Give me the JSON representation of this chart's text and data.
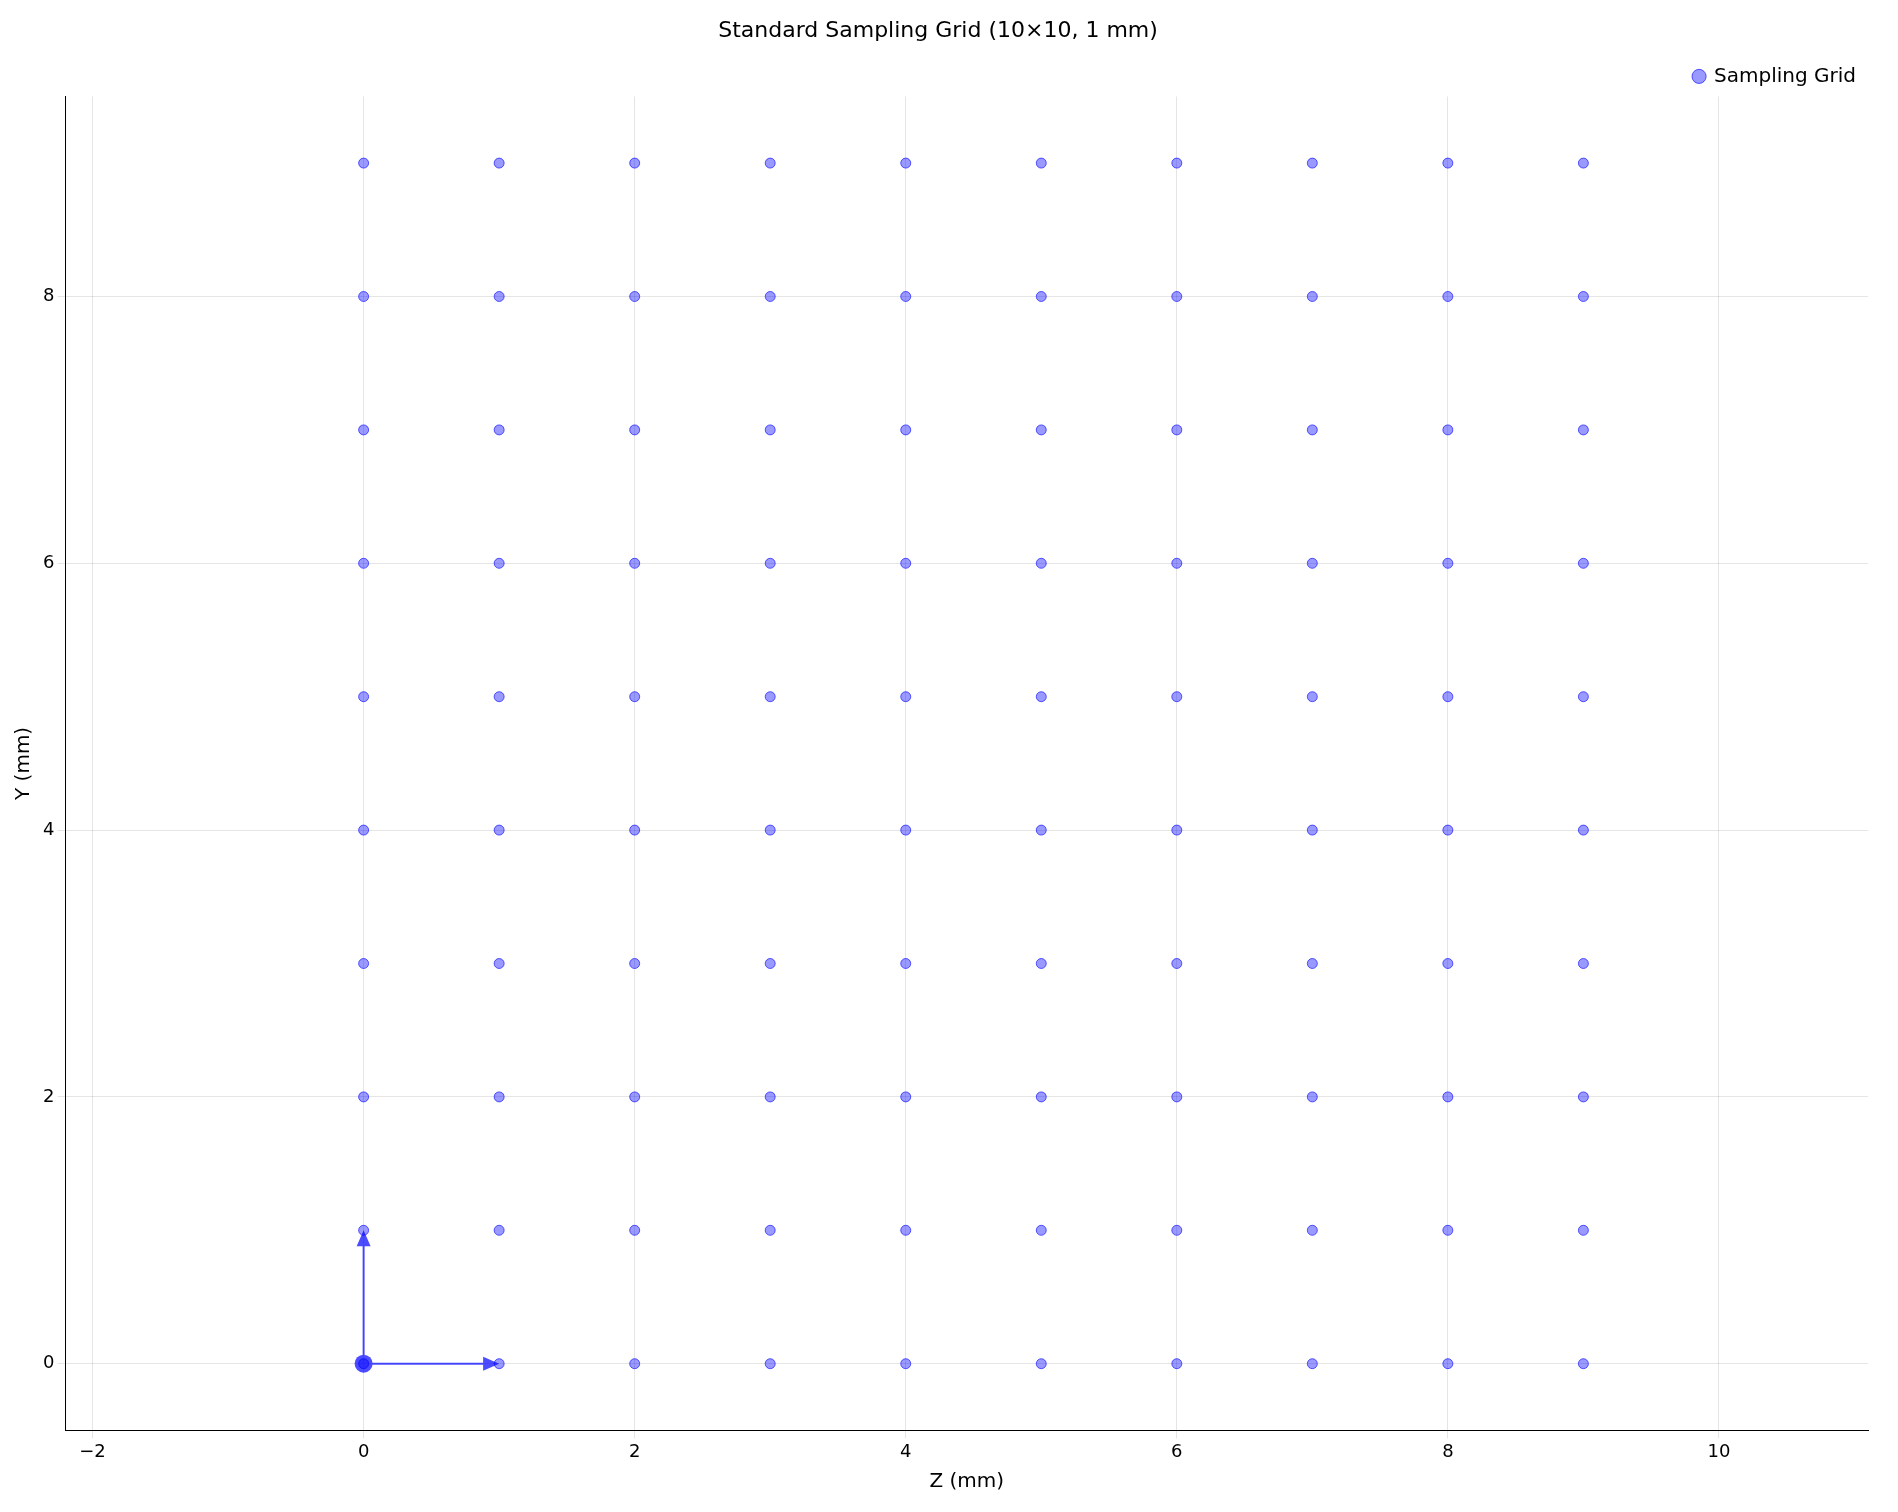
{
  "chart_data": {
    "type": "scatter",
    "title": "Standard Sampling Grid (10×10, 1 mm)",
    "xlabel": "Z (mm)",
    "ylabel": "Y (mm)",
    "xlim": [
      -2.2,
      11.1
    ],
    "xticks": [
      -2,
      0,
      2,
      4,
      6,
      8,
      10
    ],
    "ylim": [
      -0.5,
      9.5
    ],
    "yticks": [
      0,
      2,
      4,
      6,
      8
    ],
    "grid": true,
    "legend": "top right",
    "marker": "circle",
    "series": [
      {
        "name": "Sampling Grid",
        "color": "#0000ff",
        "x": [
          0,
          1,
          2,
          3,
          4,
          5,
          6,
          7,
          8,
          9,
          0,
          1,
          2,
          3,
          4,
          5,
          6,
          7,
          8,
          9,
          0,
          1,
          2,
          3,
          4,
          5,
          6,
          7,
          8,
          9,
          0,
          1,
          2,
          3,
          4,
          5,
          6,
          7,
          8,
          9,
          0,
          1,
          2,
          3,
          4,
          5,
          6,
          7,
          8,
          9,
          0,
          1,
          2,
          3,
          4,
          5,
          6,
          7,
          8,
          9,
          0,
          1,
          2,
          3,
          4,
          5,
          6,
          7,
          8,
          9,
          0,
          1,
          2,
          3,
          4,
          5,
          6,
          7,
          8,
          9,
          0,
          1,
          2,
          3,
          4,
          5,
          6,
          7,
          8,
          9,
          0,
          1,
          2,
          3,
          4,
          5,
          6,
          7,
          8,
          9
        ],
        "values": [
          0,
          0,
          0,
          0,
          0,
          0,
          0,
          0,
          0,
          0,
          1,
          1,
          1,
          1,
          1,
          1,
          1,
          1,
          1,
          1,
          2,
          2,
          2,
          2,
          2,
          2,
          2,
          2,
          2,
          2,
          3,
          3,
          3,
          3,
          3,
          3,
          3,
          3,
          3,
          3,
          4,
          4,
          4,
          4,
          4,
          4,
          4,
          4,
          4,
          4,
          5,
          5,
          5,
          5,
          5,
          5,
          5,
          5,
          5,
          5,
          6,
          6,
          6,
          6,
          6,
          6,
          6,
          6,
          6,
          6,
          7,
          7,
          7,
          7,
          7,
          7,
          7,
          7,
          7,
          7,
          8,
          8,
          8,
          8,
          8,
          8,
          8,
          8,
          8,
          8,
          9,
          9,
          9,
          9,
          9,
          9,
          9,
          9,
          9,
          9
        ]
      }
    ]
  }
}
